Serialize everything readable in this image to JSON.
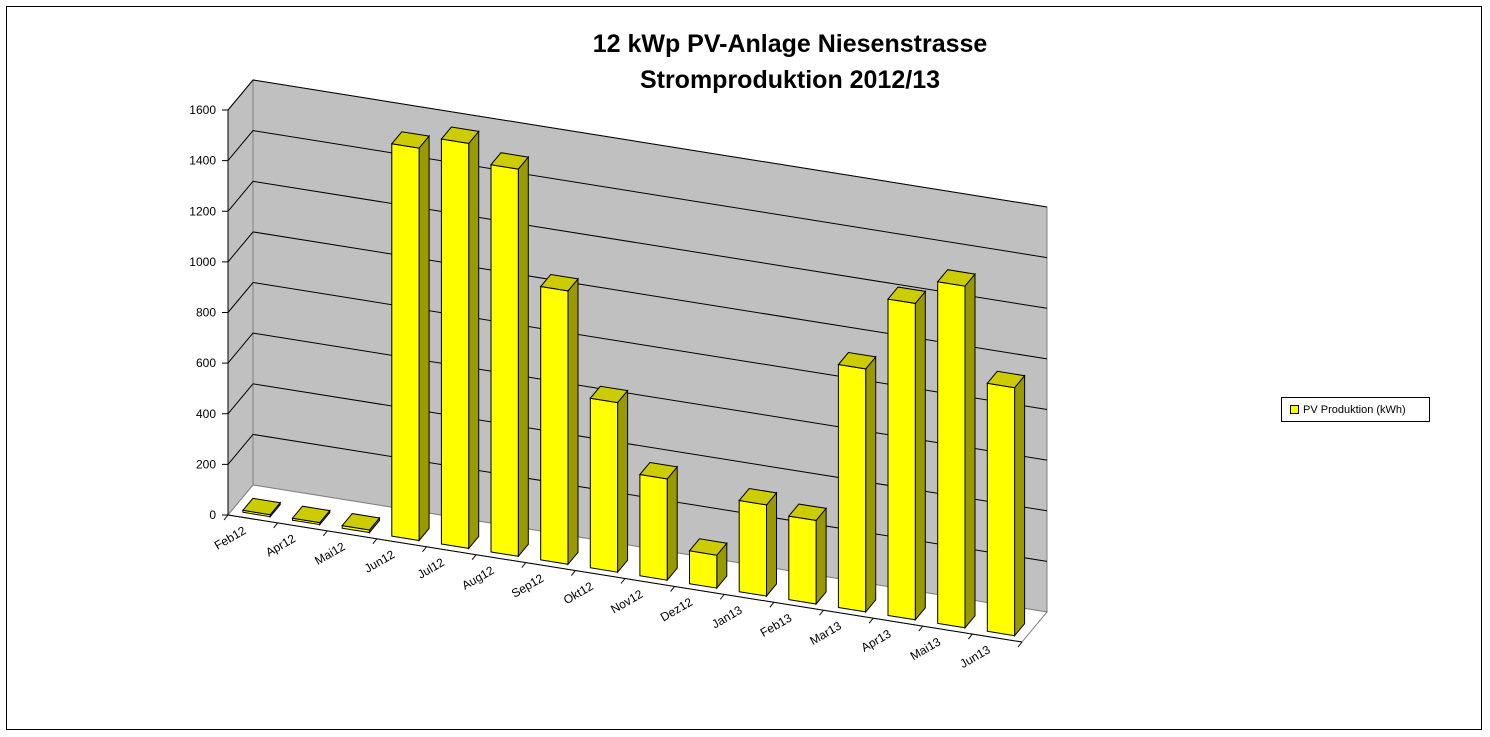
{
  "chart_data": {
    "type": "bar",
    "title": "12 kWp PV-Anlage Niesenstrasse",
    "subtitle": "Stromproduktion 2012/13",
    "categories": [
      "Feb12",
      "Apr12",
      "Mai12",
      "Jun12",
      "Jul12",
      "Aug12",
      "Sep12",
      "Okt12",
      "Nov12",
      "Dez12",
      "Jan13",
      "Feb13",
      "Mar13",
      "Apr13",
      "Mai13",
      "Jun13"
    ],
    "series": [
      {
        "name": "PV Produktion (kWh)",
        "values": [
          0,
          0,
          10,
          1550,
          1600,
          1530,
          1080,
          670,
          400,
          130,
          360,
          330,
          960,
          1250,
          1350,
          980
        ]
      }
    ],
    "ylim": [
      0,
      1600
    ],
    "yticks": [
      "0",
      "200",
      "400",
      "600",
      "800",
      "1000",
      "1200",
      "1400",
      "1600"
    ],
    "grid": true,
    "legend_position": "right",
    "colors": {
      "bar_face": "#ffff00",
      "bar_side": "#999900",
      "bar_top": "#cccc00",
      "wall": "#c0c0c0",
      "floor": "#ffffff"
    }
  }
}
